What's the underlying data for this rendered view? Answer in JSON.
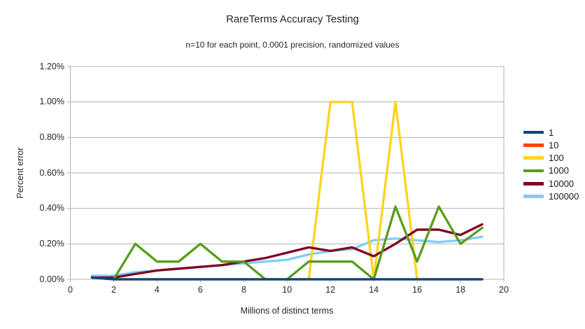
{
  "chart_data": {
    "type": "line",
    "title": "RareTerms Accuracy Testing",
    "subtitle": "n=10 for each point, 0.0001 precision, randomized values",
    "xlabel": "Millions of distinct terms",
    "ylabel": "Percent error",
    "x": [
      1,
      2,
      3,
      4,
      5,
      6,
      7,
      8,
      9,
      10,
      11,
      12,
      13,
      14,
      15,
      16,
      17,
      18,
      19
    ],
    "series": [
      {
        "name": "1",
        "color": "#004586",
        "values": [
          0.01,
          0,
          0,
          0,
          0,
          0,
          0,
          0,
          0,
          0,
          0,
          0,
          0,
          0,
          0,
          0,
          0,
          0,
          0
        ]
      },
      {
        "name": "10",
        "color": "#ff420e",
        "values": [
          0.01,
          0,
          0,
          0,
          0,
          0,
          0,
          0,
          0,
          0,
          0,
          0,
          0,
          0,
          0,
          0,
          0,
          0,
          0
        ]
      },
      {
        "name": "100",
        "color": "#ffd320",
        "values": [
          0.01,
          0,
          0,
          0,
          0,
          0,
          0,
          0,
          0,
          0,
          0,
          1.0,
          1.0,
          0,
          1.0,
          0,
          0,
          0,
          0
        ]
      },
      {
        "name": "1000",
        "color": "#579d1c",
        "values": [
          0.01,
          0,
          0.2,
          0.1,
          0.1,
          0.2,
          0.1,
          0.1,
          0,
          0,
          0.1,
          0.1,
          0.1,
          0,
          0.41,
          0.1,
          0.41,
          0.2,
          0.29
        ]
      },
      {
        "name": "10000",
        "color": "#7e0021",
        "values": [
          0.01,
          0.01,
          0.03,
          0.05,
          0.06,
          0.07,
          0.08,
          0.1,
          0.12,
          0.15,
          0.18,
          0.16,
          0.18,
          0.13,
          0.2,
          0.28,
          0.28,
          0.25,
          0.31
        ]
      },
      {
        "name": "100000",
        "color": "#83caff",
        "values": [
          0.02,
          0.02,
          0.04,
          0.05,
          0.06,
          0.07,
          0.08,
          0.09,
          0.1,
          0.11,
          0.14,
          0.16,
          0.17,
          0.22,
          0.23,
          0.22,
          0.21,
          0.22,
          0.24
        ]
      }
    ],
    "draw_order": [
      "100000",
      "100",
      "10",
      "10000",
      "1000",
      "1"
    ],
    "xlim": [
      0,
      20
    ],
    "ylim": [
      0,
      1.2
    ],
    "x_ticks": [
      0,
      2,
      4,
      6,
      8,
      10,
      12,
      14,
      16,
      18,
      20
    ],
    "y_ticks": [
      {
        "value": 0.0,
        "label": "0.00%"
      },
      {
        "value": 0.2,
        "label": "0.20%"
      },
      {
        "value": 0.4,
        "label": "0.40%"
      },
      {
        "value": 0.6,
        "label": "0.60%"
      },
      {
        "value": 0.8,
        "label": "0.80%"
      },
      {
        "value": 1.0,
        "label": "1.00%"
      },
      {
        "value": 1.2,
        "label": "1.20%"
      }
    ],
    "grid": true,
    "legend_position": "right"
  },
  "colors": {
    "background": "#ffffff",
    "grid": "#b3b3b3",
    "axis": "#b3b3b3",
    "text": "#262626"
  }
}
